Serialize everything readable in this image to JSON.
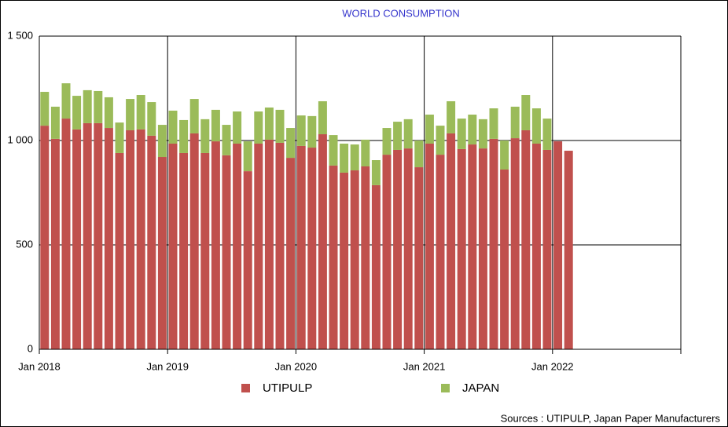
{
  "chart_data": {
    "type": "stacked-bar",
    "title": "WORLD CONSUMPTION",
    "categories": [
      "Jan 2018",
      null,
      null,
      null,
      null,
      null,
      null,
      null,
      null,
      null,
      null,
      null,
      "Jan 2019",
      null,
      null,
      null,
      null,
      null,
      null,
      null,
      null,
      null,
      null,
      null,
      "Jan 2020",
      null,
      null,
      null,
      null,
      null,
      null,
      null,
      null,
      null,
      null,
      null,
      "Jan 2021",
      null,
      null,
      null,
      null,
      null,
      null,
      null,
      null,
      null,
      null,
      null,
      "Jan 2022",
      null,
      null,
      null,
      null,
      null,
      null,
      null,
      null,
      null,
      null,
      null
    ],
    "series": [
      {
        "name": "UTIPULP",
        "color": "#c0504d",
        "values": [
          1071,
          1008,
          1105,
          1053,
          1083,
          1083,
          1060,
          940,
          1049,
          1053,
          1023,
          921,
          985,
          940,
          1034,
          940,
          996,
          929,
          985,
          853,
          985,
          1004,
          989,
          917,
          974,
          966,
          1030,
          880,
          846,
          857,
          876,
          786,
          932,
          955,
          962,
          872,
          985,
          932,
          1034,
          959,
          981,
          962,
          1008,
          861,
          1011,
          1049,
          985,
          955,
          996,
          951,
          null,
          null,
          null,
          null,
          null,
          null,
          null,
          null,
          null,
          null
        ]
      },
      {
        "name": "JAPAN",
        "color": "#9bbb59",
        "values": [
          162,
          154,
          169,
          161,
          158,
          154,
          147,
          146,
          150,
          165,
          161,
          154,
          158,
          158,
          165,
          162,
          151,
          146,
          154,
          143,
          154,
          154,
          158,
          143,
          146,
          151,
          158,
          146,
          139,
          124,
          128,
          120,
          128,
          135,
          140,
          128,
          139,
          139,
          154,
          146,
          143,
          140,
          146,
          139,
          151,
          169,
          169,
          150,
          null,
          null,
          null,
          null,
          null,
          null,
          null,
          null,
          null,
          null,
          null,
          null
        ]
      }
    ],
    "ylim": [
      0,
      1500
    ],
    "yticks": [
      0,
      500,
      {
        "value": 1000,
        "label": "1 000"
      },
      {
        "value": 1500,
        "label": "1 500"
      }
    ],
    "grid": true,
    "source": "Sources : UTIPULP, Japan Paper Manufacturers"
  }
}
